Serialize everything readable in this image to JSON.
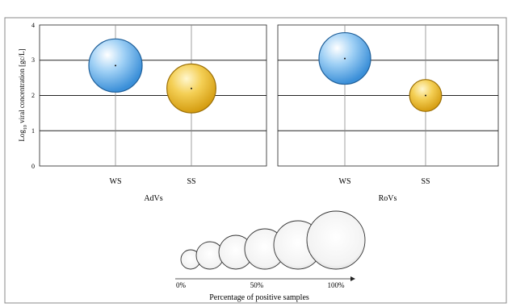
{
  "chart_data": [
    {
      "type": "bubble",
      "group": "AdVs",
      "categories": [
        "WS",
        "SS"
      ],
      "values": [
        2.85,
        2.2
      ],
      "relative_bubble_size": [
        1.0,
        0.92
      ],
      "bubble_colors": [
        "#5aa7e8",
        "#e8b420"
      ],
      "ylabel": "Log10 viral concentration [gc/L]",
      "ylim": [
        0,
        4
      ],
      "yticks": [
        "0",
        "1",
        "2",
        "3",
        "4"
      ],
      "grid": true
    },
    {
      "type": "bubble",
      "group": "RoVs",
      "categories": [
        "WS",
        "SS"
      ],
      "values": [
        3.05,
        2.0
      ],
      "relative_bubble_size": [
        0.97,
        0.6
      ],
      "bubble_colors": [
        "#5aa7e8",
        "#e8b420"
      ],
      "ylim": [
        0,
        4
      ],
      "grid": true
    }
  ],
  "y_axis": {
    "label_main": "Log",
    "label_sub": "10",
    "label_rest": " viral concentration  [gc/L]",
    "ticks": [
      "0",
      "1",
      "2",
      "3",
      "4"
    ]
  },
  "panels": [
    {
      "group_label": "AdVs",
      "categories": [
        "WS",
        "SS"
      ]
    },
    {
      "group_label": "RoVs",
      "categories": [
        "WS",
        "SS"
      ]
    }
  ],
  "size_legend": {
    "title": "Percentage of positive samples",
    "tick_labels": [
      "0%",
      "50%",
      "100%"
    ],
    "bubbles": 6
  }
}
